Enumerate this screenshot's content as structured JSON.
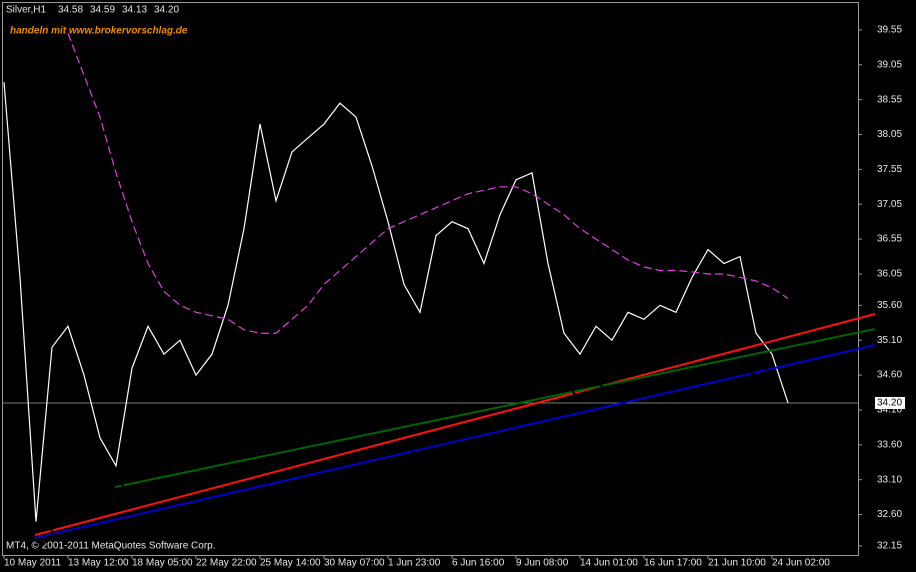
{
  "chart_data": {
    "type": "line",
    "symbol": "Silver,H1",
    "ohlc": [
      "34.58",
      "34.59",
      "34.13",
      "34.20"
    ],
    "watermark": "handeln mit www.brokervorschlag.de",
    "footer": "MT4, © 2001-2011 MetaQuotes Software Corp.",
    "categories": [
      "10 May 2011",
      null,
      null,
      null,
      "13 May 12:00",
      null,
      null,
      null,
      "18 May 05:00",
      null,
      null,
      null,
      "22 May 22:00",
      null,
      null,
      null,
      "25 May 14:00",
      null,
      null,
      null,
      "30 May 07:00",
      null,
      null,
      null,
      "1 Jun 23:00",
      null,
      null,
      null,
      "6 Jun 16:00",
      null,
      null,
      null,
      "9 Jun 08:00",
      null,
      null,
      null,
      "14 Jun 01:00",
      null,
      null,
      null,
      "16 Jun 17:00",
      null,
      null,
      null,
      "21 Jun 10:00",
      null,
      null,
      null,
      "24 Jun 02:00",
      null
    ],
    "series": [
      {
        "color": "#ffffff",
        "style": "solid",
        "values": [
          38.8,
          36.0,
          32.5,
          35.0,
          35.3,
          34.6,
          33.7,
          33.3,
          34.7,
          35.3,
          34.9,
          35.1,
          34.6,
          34.9,
          35.6,
          36.7,
          38.2,
          37.1,
          37.8,
          38.0,
          38.2,
          38.5,
          38.3,
          37.6,
          36.8,
          35.9,
          35.5,
          36.6,
          36.8,
          36.7,
          36.2,
          36.9,
          37.4,
          37.5,
          36.2,
          35.2,
          34.9,
          35.3,
          35.1,
          35.5,
          35.4,
          35.6,
          35.5,
          36.0,
          36.4,
          36.2,
          36.3,
          35.2,
          34.9,
          34.2
        ]
      },
      {
        "color": "#e040e0",
        "style": "dashed",
        "values": [
          null,
          null,
          null,
          null,
          39.5,
          38.9,
          38.3,
          37.5,
          36.8,
          36.2,
          35.8,
          35.6,
          35.5,
          35.45,
          35.4,
          35.25,
          35.2,
          35.2,
          35.4,
          35.6,
          35.9,
          36.1,
          36.3,
          36.5,
          36.7,
          36.8,
          36.9,
          37.0,
          37.1,
          37.2,
          37.25,
          37.3,
          37.3,
          37.2,
          37.05,
          36.9,
          36.7,
          36.55,
          36.4,
          36.25,
          36.15,
          36.1,
          36.1,
          36.08,
          36.05,
          36.05,
          36.0,
          35.95,
          35.85,
          35.7
        ]
      }
    ],
    "ylim": [
      32.02,
      39.95
    ],
    "yticks": [
      32.15,
      {
        "value": 32.6,
        "label": "32.60"
      },
      {
        "value": 33.1,
        "label": "33.10"
      },
      {
        "value": 33.6,
        "label": "33.60"
      },
      {
        "value": 34.1,
        "label": "34.10"
      },
      {
        "value": 34.6,
        "label": "34.60"
      },
      {
        "value": 35.1,
        "label": "35.10"
      },
      {
        "value": 35.6,
        "label": "35.60"
      },
      36.05,
      36.55,
      37.05,
      37.55,
      38.05,
      38.55,
      39.05,
      39.55
    ],
    "price_marker": {
      "value": 34.2,
      "label": "34.20"
    }
  }
}
